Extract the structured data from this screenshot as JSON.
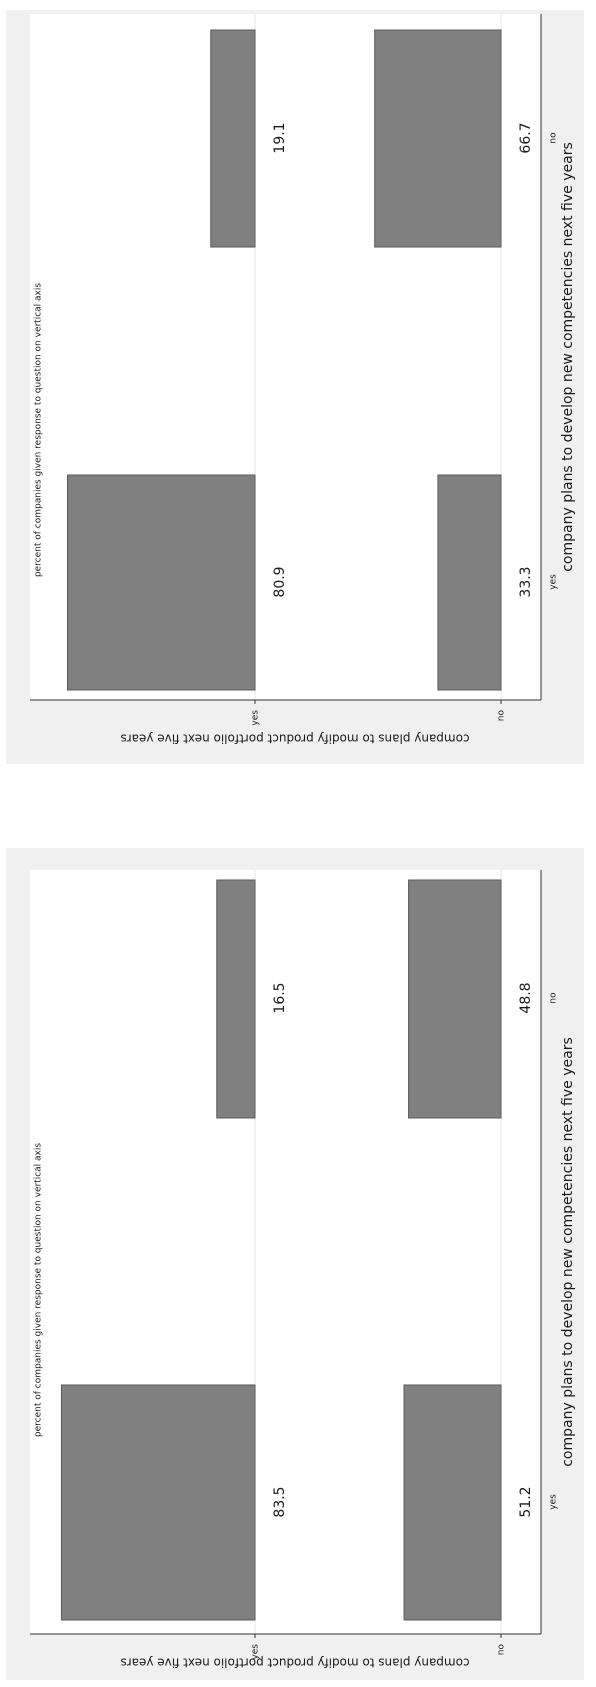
{
  "chart_data": [
    {
      "type": "bar",
      "panel": "top",
      "note": "percent of companies given response to question on vertical axis",
      "xlabel": "company plans to develop new competencies next five years",
      "ylabel": "company plans to modify product portfolio next five years",
      "x_categories": [
        "yes",
        "no"
      ],
      "y_categories": [
        "yes",
        "no"
      ],
      "cells": [
        {
          "x": "yes",
          "y": "yes",
          "value": 80.9,
          "label": "80.9"
        },
        {
          "x": "no",
          "y": "yes",
          "value": 19.1,
          "label": "19.1"
        },
        {
          "x": "yes",
          "y": "no",
          "value": 33.3,
          "label": "33.3"
        },
        {
          "x": "no",
          "y": "no",
          "value": 66.7,
          "label": "66.7"
        }
      ],
      "ylim": [
        0,
        100
      ],
      "colors": {
        "bar": "#808080",
        "bar_edge": "#5a5a5a",
        "background": "#f0f0f0",
        "plot": "#ffffff",
        "grid": "#e6e6e6"
      }
    },
    {
      "type": "bar",
      "panel": "bottom",
      "note": "percent of companies given response to question on vertical axis",
      "xlabel": "company plans to develop new competencies next five years",
      "ylabel": "company plans to modify product portfolio next five years",
      "x_categories": [
        "yes",
        "no"
      ],
      "y_categories": [
        "yes",
        "no"
      ],
      "cells": [
        {
          "x": "yes",
          "y": "yes",
          "value": 83.5,
          "label": "83.5"
        },
        {
          "x": "no",
          "y": "yes",
          "value": 16.5,
          "label": "16.5"
        },
        {
          "x": "yes",
          "y": "no",
          "value": 51.2,
          "label": "51.2"
        },
        {
          "x": "no",
          "y": "no",
          "value": 48.8,
          "label": "48.8"
        }
      ],
      "ylim": [
        0,
        100
      ],
      "colors": {
        "bar": "#808080",
        "bar_edge": "#5a5a5a",
        "background": "#f0f0f0",
        "plot": "#ffffff",
        "grid": "#e6e6e6"
      }
    }
  ]
}
